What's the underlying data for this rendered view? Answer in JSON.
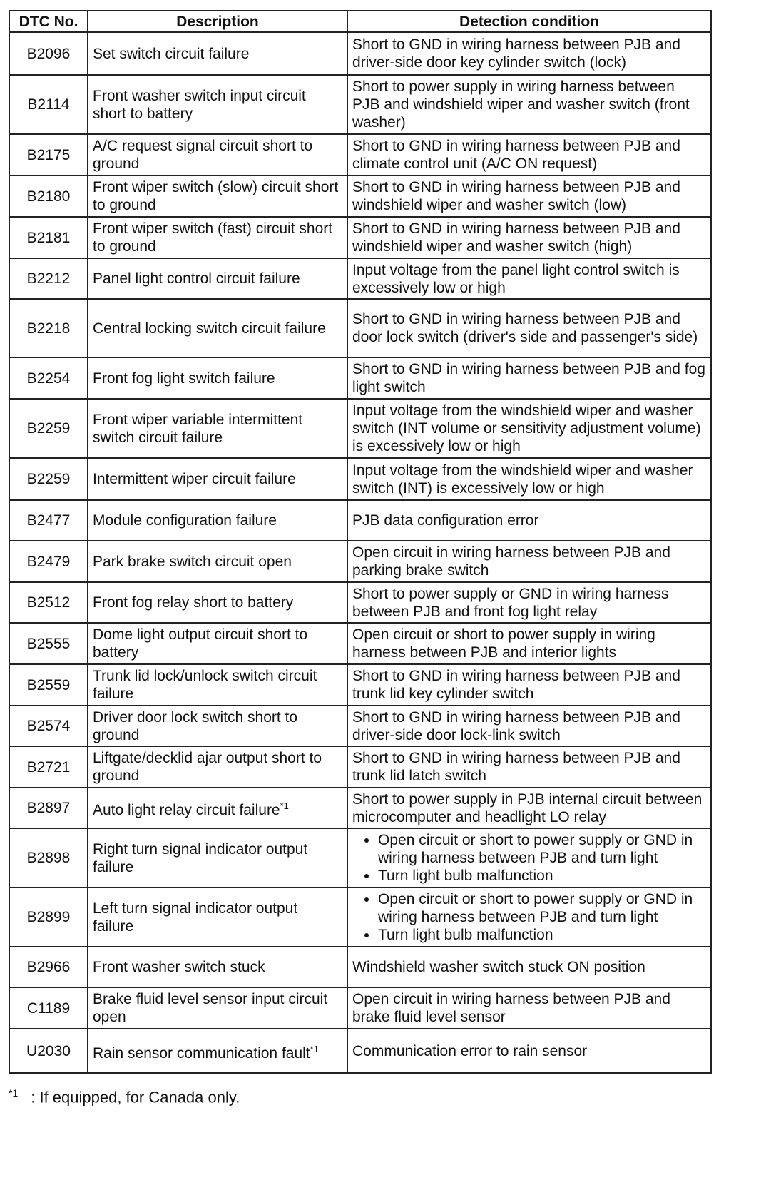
{
  "header": {
    "dtc": "DTC No.",
    "description": "Description",
    "condition": "Detection condition"
  },
  "rows": [
    {
      "code": "B2096",
      "description": "Set switch circuit failure",
      "condition": "Short to GND in wiring harness between PJB and driver-side door key cylinder switch (lock)"
    },
    {
      "code": "B2114",
      "description": "Front washer switch input circuit short to battery",
      "condition": "Short to power supply in wiring harness between PJB and windshield wiper and washer switch (front washer)"
    },
    {
      "code": "B2175",
      "description": "A/C request signal circuit short to ground",
      "condition": "Short to GND in wiring harness between PJB and climate control unit (A/C ON request)"
    },
    {
      "code": "B2180",
      "description": "Front wiper switch (slow) circuit short to ground",
      "condition": "Short to GND in wiring harness between PJB and windshield wiper and washer switch (low)"
    },
    {
      "code": "B2181",
      "description": "Front wiper switch (fast) circuit short to ground",
      "condition": "Short to GND in wiring harness between PJB and windshield wiper and washer switch (high)"
    },
    {
      "code": "B2212",
      "description": "Panel light control circuit failure",
      "condition": "Input voltage from the panel light control switch is excessively low or high"
    },
    {
      "code": "B2218",
      "description": "Central locking switch circuit failure",
      "condition": "Short to GND in wiring harness between PJB and door lock switch (driver's side and passenger's side)"
    },
    {
      "code": "B2254",
      "description": "Front fog light switch failure",
      "condition": "Short to GND in wiring harness between PJB and fog light switch"
    },
    {
      "code": "B2259",
      "description": "Front wiper variable intermittent switch circuit failure",
      "condition": "Input voltage from the windshield wiper and washer switch (INT volume or sensitivity adjustment volume) is excessively low or high"
    },
    {
      "code": "B2259",
      "description": "Intermittent wiper circuit failure",
      "condition": "Input voltage from the windshield wiper and washer switch (INT) is excessively low or high"
    },
    {
      "code": "B2477",
      "description": "Module configuration failure",
      "condition": "PJB data configuration error"
    },
    {
      "code": "B2479",
      "description": "Park brake switch circuit open",
      "condition": "Open circuit in wiring harness between PJB and parking brake switch"
    },
    {
      "code": "B2512",
      "description": "Front fog relay short to battery",
      "condition": "Short to power supply or GND in wiring harness between PJB and front fog light relay"
    },
    {
      "code": "B2555",
      "description": "Dome light output circuit short to battery",
      "condition": "Open circuit or short to power supply in wiring harness between PJB and interior lights"
    },
    {
      "code": "B2559",
      "description": "Trunk lid lock/unlock switch circuit failure",
      "condition": "Short to GND in wiring harness between PJB and trunk lid key cylinder switch"
    },
    {
      "code": "B2574",
      "description": "Driver door lock switch short to ground",
      "condition": "Short to GND in wiring harness between PJB and driver-side door lock-link switch"
    },
    {
      "code": "B2721",
      "description": "Liftgate/decklid ajar output short to ground",
      "condition": "Short to GND in wiring harness between PJB and trunk lid latch switch"
    },
    {
      "code": "B2897",
      "description": "Auto light relay circuit failure",
      "note": "*1",
      "condition": "Short to power supply in PJB internal circuit between microcomputer and headlight LO relay"
    },
    {
      "code": "B2898",
      "description": "Right turn signal indicator output failure",
      "bullets": [
        "Open circuit or short to power supply or GND in wiring harness between PJB and turn light",
        "Turn light bulb malfunction"
      ]
    },
    {
      "code": "B2899",
      "description": "Left turn signal indicator output failure",
      "bullets": [
        "Open circuit or short to power supply or GND in wiring harness between PJB and turn light",
        "Turn light bulb malfunction"
      ]
    },
    {
      "code": "B2966",
      "description": "Front washer switch stuck",
      "condition": "Windshield washer switch stuck ON position"
    },
    {
      "code": "C1189",
      "description": "Brake fluid level sensor input circuit open",
      "condition": "Open circuit in wiring harness between PJB and brake fluid level sensor"
    },
    {
      "code": "U2030",
      "description": "Rain sensor communication fault",
      "note": "*1",
      "condition": "Communication error to rain sensor"
    }
  ],
  "footnote": {
    "mark": "*1",
    "text": ": If equipped, for Canada only."
  }
}
